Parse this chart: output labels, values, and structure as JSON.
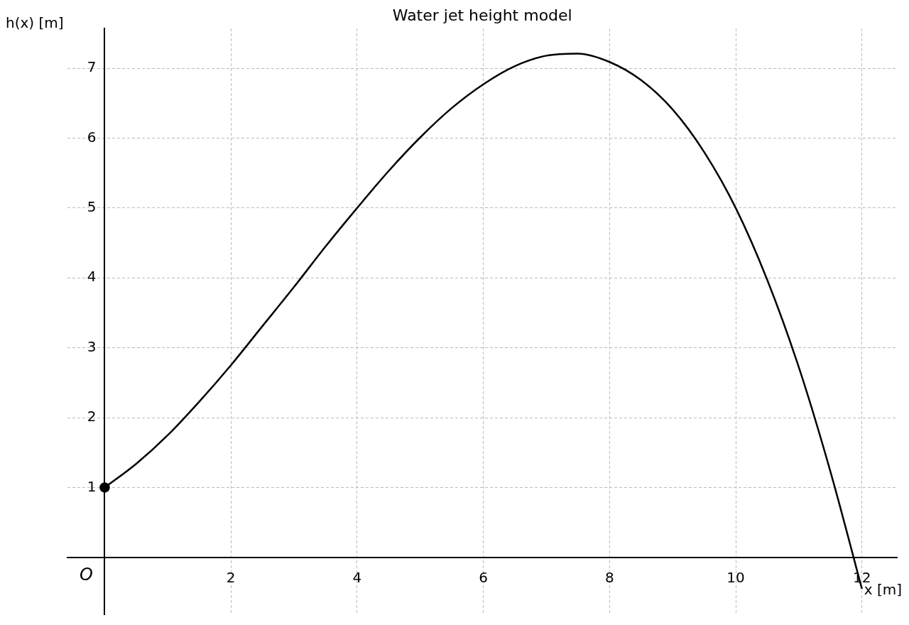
{
  "chart_data": {
    "type": "line",
    "title": "Water jet height model",
    "xlabel": "x [m]",
    "ylabel": "h(x) [m]",
    "annotations": [
      "O"
    ],
    "xlim": [
      -0.59,
      12.56
    ],
    "ylim": [
      -0.82,
      7.57
    ],
    "xticks": [
      2,
      4,
      6,
      8,
      10,
      12
    ],
    "yticks": [
      1,
      2,
      3,
      4,
      5,
      6,
      7
    ],
    "grid": true,
    "legend": false,
    "series": [
      {
        "type": "line",
        "color": "#000000",
        "marker": "none",
        "line_style": "solid",
        "x": [
          0,
          0.5,
          1,
          1.5,
          2,
          2.5,
          3,
          3.5,
          4,
          4.5,
          5,
          5.5,
          6,
          6.5,
          7,
          7.5,
          8,
          8.5,
          9,
          9.5,
          10,
          10.5,
          11,
          11.5,
          12
        ],
        "values": [
          1,
          1.34,
          1.75,
          2.23,
          2.75,
          3.31,
          3.87,
          4.45,
          5.0,
          5.53,
          6.01,
          6.43,
          6.77,
          7.03,
          7.18,
          7.21,
          7.09,
          6.83,
          6.41,
          5.8,
          5.0,
          3.97,
          2.72,
          1.23,
          -0.45
        ]
      },
      {
        "type": "scatter",
        "color": "#000000",
        "marker": "circle",
        "x": [
          0
        ],
        "values": [
          1
        ]
      }
    ]
  }
}
